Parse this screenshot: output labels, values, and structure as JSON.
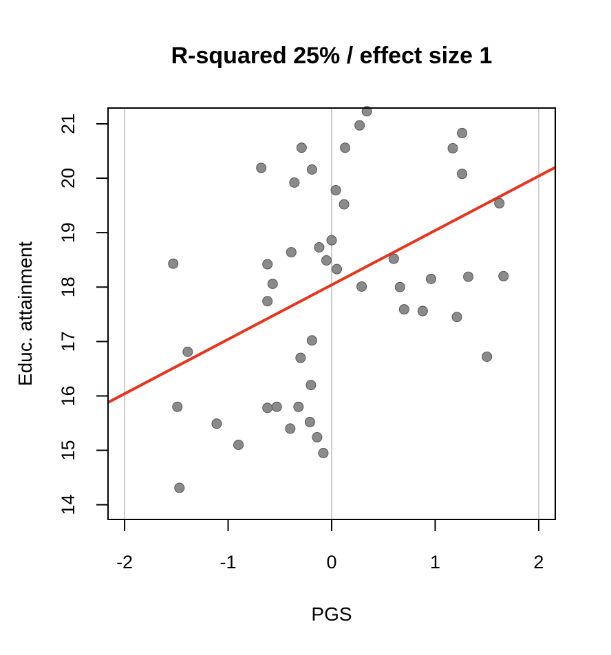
{
  "chart_data": {
    "type": "scatter",
    "title": "R-squared 25% / effect size 1",
    "xlabel": "PGS",
    "ylabel": "Educ. attainment",
    "xlim": [
      -2.16,
      2.16
    ],
    "ylim": [
      13.73,
      21.29
    ],
    "xticks": [
      -2,
      -1,
      0,
      1,
      2
    ],
    "xtick_labels": [
      "-2",
      "-1",
      "0",
      "1",
      "2"
    ],
    "yticks": [
      14,
      15,
      16,
      17,
      18,
      19,
      20,
      21
    ],
    "ytick_labels": [
      "14",
      "15",
      "16",
      "17",
      "18",
      "19",
      "20",
      "21"
    ],
    "vertical_reference_lines": [
      -2,
      0,
      2
    ],
    "fit_line": {
      "intercept": 18.04,
      "slope": 1.0
    },
    "colors": {
      "points": "#8a8a8a",
      "point_outline": "#555555",
      "fit_line": "#e8341c",
      "gridline": "#cccccc",
      "axes": "#000000"
    },
    "points": [
      {
        "x": 0.34,
        "y": 21.23
      },
      {
        "x": 0.27,
        "y": 20.97
      },
      {
        "x": -0.29,
        "y": 20.56
      },
      {
        "x": 0.13,
        "y": 20.56
      },
      {
        "x": 1.17,
        "y": 20.55
      },
      {
        "x": 1.26,
        "y": 20.83
      },
      {
        "x": -0.68,
        "y": 20.19
      },
      {
        "x": -0.19,
        "y": 20.16
      },
      {
        "x": 1.26,
        "y": 20.08
      },
      {
        "x": -0.36,
        "y": 19.92
      },
      {
        "x": 0.04,
        "y": 19.78
      },
      {
        "x": 0.12,
        "y": 19.52
      },
      {
        "x": 1.62,
        "y": 19.54
      },
      {
        "x": 0.0,
        "y": 18.86
      },
      {
        "x": -0.12,
        "y": 18.73
      },
      {
        "x": -0.39,
        "y": 18.64
      },
      {
        "x": -0.05,
        "y": 18.49
      },
      {
        "x": 0.6,
        "y": 18.52
      },
      {
        "x": -1.53,
        "y": 18.43
      },
      {
        "x": -0.62,
        "y": 18.42
      },
      {
        "x": 0.05,
        "y": 18.33
      },
      {
        "x": -0.57,
        "y": 18.06
      },
      {
        "x": 0.29,
        "y": 18.01
      },
      {
        "x": 0.66,
        "y": 18.0
      },
      {
        "x": 0.96,
        "y": 18.15
      },
      {
        "x": 1.32,
        "y": 18.19
      },
      {
        "x": 1.66,
        "y": 18.2
      },
      {
        "x": -0.62,
        "y": 17.74
      },
      {
        "x": 0.7,
        "y": 17.59
      },
      {
        "x": 0.88,
        "y": 17.56
      },
      {
        "x": 1.21,
        "y": 17.45
      },
      {
        "x": -0.19,
        "y": 17.02
      },
      {
        "x": -1.39,
        "y": 16.81
      },
      {
        "x": -0.3,
        "y": 16.7
      },
      {
        "x": 1.5,
        "y": 16.72
      },
      {
        "x": -0.2,
        "y": 16.2
      },
      {
        "x": -1.49,
        "y": 15.8
      },
      {
        "x": -0.62,
        "y": 15.78
      },
      {
        "x": -0.53,
        "y": 15.8
      },
      {
        "x": -0.32,
        "y": 15.8
      },
      {
        "x": -1.11,
        "y": 15.49
      },
      {
        "x": -0.21,
        "y": 15.52
      },
      {
        "x": -0.4,
        "y": 15.4
      },
      {
        "x": -0.9,
        "y": 15.1
      },
      {
        "x": -0.14,
        "y": 15.24
      },
      {
        "x": -0.08,
        "y": 14.95
      },
      {
        "x": -1.47,
        "y": 14.31
      }
    ]
  }
}
